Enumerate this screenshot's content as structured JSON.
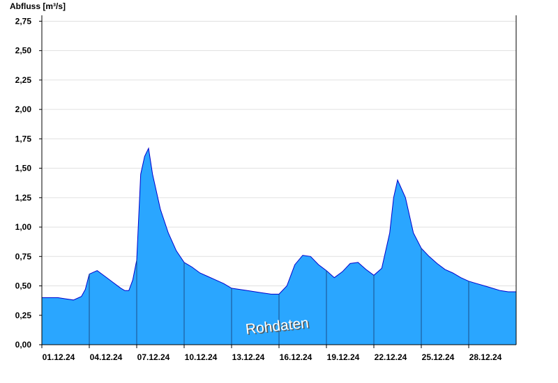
{
  "chart_data": {
    "type": "area",
    "ylabel": "Abfluss [m³/s]",
    "xlabel": "",
    "ylim": [
      0,
      2.8
    ],
    "xlim": [
      "2024-12-01",
      "2024-12-31"
    ],
    "yticks": [
      {
        "value": 0,
        "label": "0,00"
      },
      {
        "value": 0.25,
        "label": "0,25"
      },
      {
        "value": 0.5,
        "label": "0,50"
      },
      {
        "value": 0.75,
        "label": "0,75"
      },
      {
        "value": 1.0,
        "label": "1,00"
      },
      {
        "value": 1.25,
        "label": "1,25"
      },
      {
        "value": 1.5,
        "label": "1,50"
      },
      {
        "value": 1.75,
        "label": "1,75"
      },
      {
        "value": 2.0,
        "label": "2,00"
      },
      {
        "value": 2.25,
        "label": "2,25"
      },
      {
        "value": 2.5,
        "label": "2,50"
      },
      {
        "value": 2.75,
        "label": "2,75"
      }
    ],
    "xticks": [
      {
        "date": "2024-12-01",
        "label": "01.12.24"
      },
      {
        "date": "2024-12-04",
        "label": "04.12.24"
      },
      {
        "date": "2024-12-07",
        "label": "07.12.24"
      },
      {
        "date": "2024-12-10",
        "label": "10.12.24"
      },
      {
        "date": "2024-12-13",
        "label": "13.12.24"
      },
      {
        "date": "2024-12-16",
        "label": "16.12.24"
      },
      {
        "date": "2024-12-19",
        "label": "19.12.24"
      },
      {
        "date": "2024-12-22",
        "label": "22.12.24"
      },
      {
        "date": "2024-12-25",
        "label": "25.12.24"
      },
      {
        "date": "2024-12-28",
        "label": "28.12.24"
      }
    ],
    "series": [
      {
        "x": [
          "2024-12-01 00:00",
          "2024-12-01 12:00",
          "2024-12-02 00:00",
          "2024-12-02 12:00",
          "2024-12-03 00:00",
          "2024-12-03 12:00",
          "2024-12-03 18:00",
          "2024-12-04 00:00",
          "2024-12-04 12:00",
          "2024-12-05 00:00",
          "2024-12-05 12:00",
          "2024-12-06 00:00",
          "2024-12-06 06:00",
          "2024-12-06 12:00",
          "2024-12-06 18:00",
          "2024-12-07 00:00",
          "2024-12-07 06:00",
          "2024-12-07 12:00",
          "2024-12-07 18:00",
          "2024-12-08 00:00",
          "2024-12-08 12:00",
          "2024-12-09 00:00",
          "2024-12-09 12:00",
          "2024-12-10 00:00",
          "2024-12-10 12:00",
          "2024-12-11 00:00",
          "2024-12-11 12:00",
          "2024-12-12 00:00",
          "2024-12-12 12:00",
          "2024-12-13 00:00",
          "2024-12-14 00:00",
          "2024-12-15 00:00",
          "2024-12-15 12:00",
          "2024-12-16 00:00",
          "2024-12-16 12:00",
          "2024-12-17 00:00",
          "2024-12-17 12:00",
          "2024-12-18 00:00",
          "2024-12-18 12:00",
          "2024-12-19 00:00",
          "2024-12-19 12:00",
          "2024-12-20 00:00",
          "2024-12-20 12:00",
          "2024-12-21 00:00",
          "2024-12-21 12:00",
          "2024-12-22 00:00",
          "2024-12-22 12:00",
          "2024-12-23 00:00",
          "2024-12-23 06:00",
          "2024-12-23 12:00",
          "2024-12-24 00:00",
          "2024-12-24 12:00",
          "2024-12-25 00:00",
          "2024-12-25 12:00",
          "2024-12-26 00:00",
          "2024-12-26 12:00",
          "2024-12-27 00:00",
          "2024-12-27 12:00",
          "2024-12-28 00:00",
          "2024-12-28 12:00",
          "2024-12-29 00:00",
          "2024-12-29 12:00",
          "2024-12-30 00:00",
          "2024-12-30 12:00",
          "2024-12-31 00:00"
        ],
        "values": [
          0.4,
          0.4,
          0.4,
          0.39,
          0.38,
          0.41,
          0.47,
          0.6,
          0.63,
          0.58,
          0.53,
          0.48,
          0.46,
          0.46,
          0.55,
          0.72,
          1.45,
          1.6,
          1.67,
          1.45,
          1.15,
          0.95,
          0.8,
          0.7,
          0.66,
          0.61,
          0.58,
          0.55,
          0.52,
          0.48,
          0.46,
          0.44,
          0.43,
          0.43,
          0.5,
          0.68,
          0.76,
          0.75,
          0.68,
          0.63,
          0.57,
          0.62,
          0.69,
          0.7,
          0.64,
          0.59,
          0.65,
          0.95,
          1.25,
          1.4,
          1.25,
          0.95,
          0.82,
          0.75,
          0.69,
          0.64,
          0.61,
          0.57,
          0.54,
          0.52,
          0.5,
          0.48,
          0.46,
          0.45,
          0.45
        ]
      }
    ],
    "colors": {
      "fill": "#2aa6ff",
      "line": "#0000cc",
      "grid": "#e0e0e0",
      "axis": "#000000",
      "dayline": "#1a4f8a"
    },
    "grid": "horizontal",
    "annotation": "Rohdaten"
  }
}
